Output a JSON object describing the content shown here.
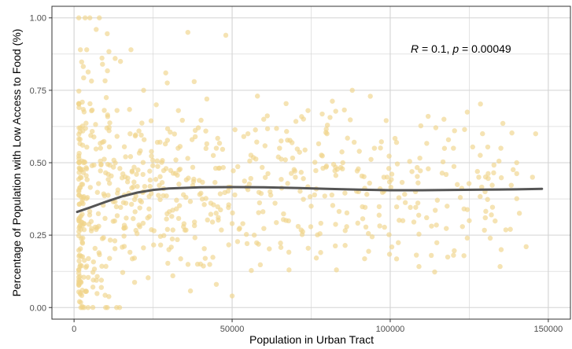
{
  "chart_data": {
    "type": "scatter",
    "title": "",
    "xlabel": "Population in Urban Tract",
    "ylabel": "Percentage of Population with Low Access to Food (%)",
    "xlim": [
      -7000,
      157000
    ],
    "ylim": [
      -0.04,
      1.04
    ],
    "x_ticks": [
      0,
      50000,
      100000,
      150000
    ],
    "x_tick_labels": [
      "0",
      "50000",
      "100000",
      "150000"
    ],
    "y_ticks": [
      0.0,
      0.25,
      0.5,
      0.75,
      1.0
    ],
    "y_tick_labels": [
      "0.00",
      "0.25",
      "0.50",
      "0.75",
      "1.00"
    ],
    "grid": true,
    "annotation": {
      "r_label": "R",
      "r_value": " = 0.1, ",
      "p_label": "p",
      "p_value": " = 0.00049"
    },
    "point_color": "#f0d48a",
    "line_color": "#555555",
    "panel_border_color": "#333333",
    "grid_color": "#d3d3d3",
    "smooth_line": {
      "x": [
        1000,
        5000,
        10000,
        15000,
        20000,
        25000,
        30000,
        40000,
        50000,
        60000,
        70000,
        80000,
        90000,
        100000,
        110000,
        120000,
        130000,
        140000,
        148000
      ],
      "y": [
        0.33,
        0.345,
        0.365,
        0.383,
        0.397,
        0.406,
        0.411,
        0.415,
        0.416,
        0.415,
        0.413,
        0.41,
        0.407,
        0.405,
        0.405,
        0.406,
        0.407,
        0.408,
        0.41
      ]
    },
    "series": [
      {
        "points": [
          [
            1500,
            1.0
          ],
          [
            3500,
            1.0
          ],
          [
            5000,
            1.0
          ],
          [
            8000,
            1.0
          ],
          [
            2000,
            0.89
          ],
          [
            4000,
            0.89
          ],
          [
            7000,
            0.96
          ],
          [
            9000,
            0.84
          ],
          [
            13000,
            0.86
          ],
          [
            18000,
            0.89
          ],
          [
            29000,
            0.81
          ],
          [
            36000,
            0.95
          ],
          [
            48000,
            0.94
          ],
          [
            58000,
            0.73
          ],
          [
            74000,
            0.68
          ],
          [
            88000,
            0.75
          ],
          [
            102000,
            0.57
          ],
          [
            112000,
            0.66
          ],
          [
            117000,
            0.65
          ],
          [
            146000,
            0.6
          ],
          [
            60000,
            0.65
          ],
          [
            45000,
            0.55
          ],
          [
            65000,
            0.55
          ],
          [
            80000,
            0.6
          ],
          [
            95000,
            0.55
          ],
          [
            120000,
            0.55
          ],
          [
            135000,
            0.55
          ],
          [
            140000,
            0.5
          ],
          [
            128000,
            0.45
          ],
          [
            132000,
            0.32
          ],
          [
            138000,
            0.27
          ],
          [
            143000,
            0.21
          ],
          [
            113000,
            0.18
          ],
          [
            78000,
            0.19
          ],
          [
            83000,
            0.13
          ],
          [
            57000,
            0.25
          ],
          [
            50000,
            0.29
          ],
          [
            45000,
            0.08
          ],
          [
            40000,
            0.15
          ],
          [
            68000,
            0.13
          ],
          [
            50000,
            0.04
          ],
          [
            30000,
            0.2
          ],
          [
            22000,
            0.75
          ],
          [
            26000,
            0.7
          ],
          [
            33000,
            0.68
          ],
          [
            38000,
            0.78
          ],
          [
            42000,
            0.72
          ],
          [
            55000,
            0.6
          ],
          [
            62000,
            0.4
          ],
          [
            70000,
            0.45
          ],
          [
            75000,
            0.35
          ],
          [
            85000,
            0.5
          ],
          [
            90000,
            0.4
          ],
          [
            98000,
            0.45
          ],
          [
            104000,
            0.3
          ],
          [
            108000,
            0.4
          ],
          [
            118000,
            0.35
          ],
          [
            125000,
            0.3
          ],
          [
            130000,
            0.4
          ],
          [
            145000,
            0.45
          ]
        ]
      }
    ]
  }
}
